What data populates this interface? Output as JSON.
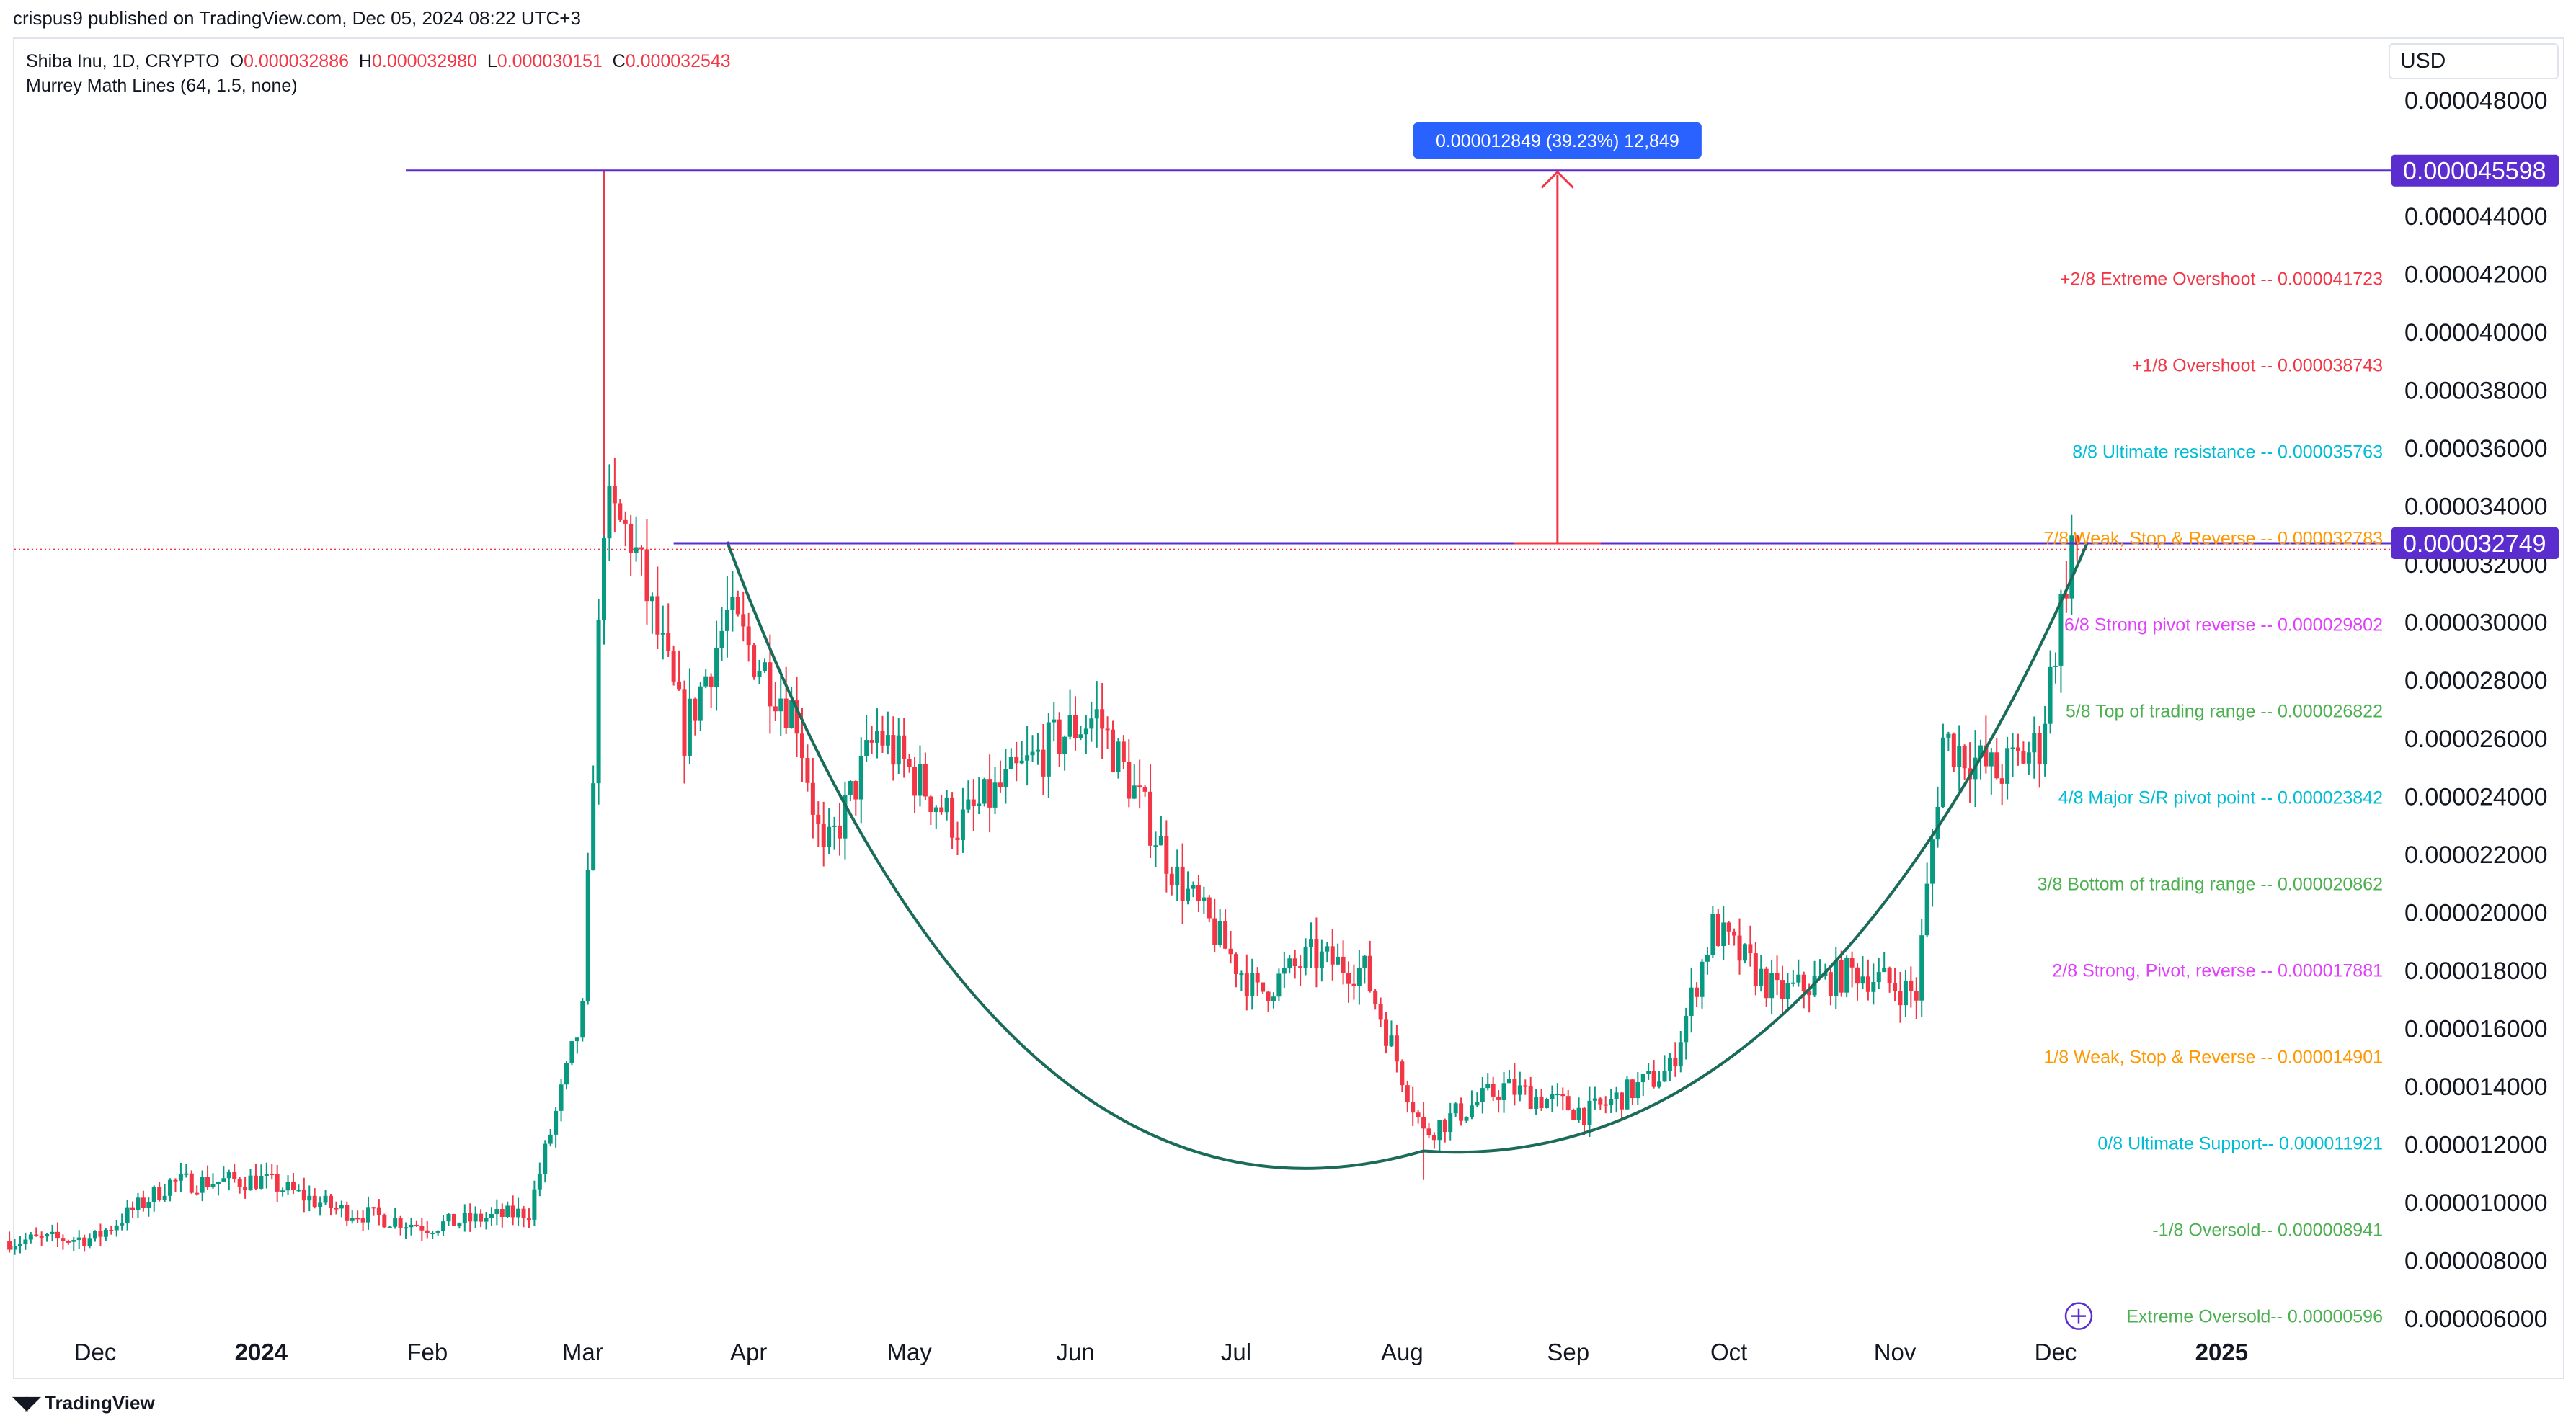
{
  "header": {
    "published": "crispus9 published on TradingView.com, Dec 05, 2024 08:22 UTC+3"
  },
  "legend": {
    "symbol": "Shiba Inu, 1D, CRYPTO",
    "o_label": "O",
    "o": "0.000032886",
    "h_label": "H",
    "h": "0.000032980",
    "l_label": "L",
    "l": "0.000030151",
    "c_label": "C",
    "c": "0.000032543",
    "indicator": "Murrey Math Lines (64, 1.5, none)"
  },
  "currency": "USD",
  "footer": {
    "brand": "TradingView"
  },
  "colors": {
    "up": "#089981",
    "down": "#f23645",
    "purple": "#5b2dcf",
    "curve": "#1b6b5a",
    "measure": "#f23645",
    "tooltip": "#2962ff",
    "cyan": "#00bcd4",
    "orange": "#ff9800",
    "magenta": "#e040fb",
    "green": "#4caf50",
    "red": "#f23645"
  },
  "chart_data": {
    "type": "candlestick",
    "title": "Shiba Inu, 1D, CRYPTO",
    "ylim": [
      5.5e-06,
      5.05e-05
    ],
    "y_ticks": [
      "0.000048000",
      "0.000044000",
      "0.000042000",
      "0.000040000",
      "0.000038000",
      "0.000036000",
      "0.000034000",
      "0.000032000",
      "0.000030000",
      "0.000028000",
      "0.000026000",
      "0.000024000",
      "0.000022000",
      "0.000020000",
      "0.000018000",
      "0.000016000",
      "0.000014000",
      "0.000012000",
      "0.000010000",
      "0.000008000",
      "0.000006000"
    ],
    "x_ticks": [
      "Dec",
      "2024",
      "Feb",
      "Mar",
      "Apr",
      "May",
      "Jun",
      "Jul",
      "Aug",
      "Sep",
      "Oct",
      "Nov",
      "Dec",
      "2025"
    ],
    "price_labels": [
      {
        "value": "0.000045598",
        "price": 4.5598e-05
      },
      {
        "value": "0.000032749",
        "price": 3.2749e-05
      }
    ],
    "resistance_line": 4.5598e-05,
    "neckline": 3.2749e-05,
    "measure_tooltip": "0.000012849 (39.23%) 12,849",
    "murrey_levels": [
      {
        "label": "+2/8 Extreme Overshoot --  0.000041723",
        "value": 4.1723e-05,
        "color": "red"
      },
      {
        "label": "+1/8 Overshoot --  0.000038743",
        "value": 3.8743e-05,
        "color": "red"
      },
      {
        "label": "8/8 Ultimate resistance --  0.000035763",
        "value": 3.5763e-05,
        "color": "cyan"
      },
      {
        "label": "7/8 Weak, Stop & Reverse --  0.000032783",
        "value": 3.2783e-05,
        "color": "orange"
      },
      {
        "label": "6/8 Strong pivot reverse --  0.000029802",
        "value": 2.9802e-05,
        "color": "magenta"
      },
      {
        "label": "5/8 Top of trading range --  0.000026822",
        "value": 2.6822e-05,
        "color": "green"
      },
      {
        "label": "4/8 Major S/R pivot point --  0.000023842",
        "value": 2.3842e-05,
        "color": "cyan"
      },
      {
        "label": "3/8 Bottom of trading range --  0.000020862",
        "value": 2.0862e-05,
        "color": "green"
      },
      {
        "label": "2/8 Strong, Pivot, reverse --  0.000017881",
        "value": 1.7881e-05,
        "color": "magenta"
      },
      {
        "label": "1/8 Weak, Stop & Reverse --  0.000014901",
        "value": 1.4901e-05,
        "color": "orange"
      },
      {
        "label": "0/8 Ultimate Support--  0.000011921",
        "value": 1.1921e-05,
        "color": "cyan"
      },
      {
        "label": "-1/8 Oversold--  0.000008941",
        "value": 8.941e-06,
        "color": "green"
      },
      {
        "label": "Extreme Oversold--  0.00000596",
        "value": 5.96e-06,
        "color": "green"
      }
    ],
    "series": [
      {
        "date": "2023-11-15",
        "close": 8.7e-06
      },
      {
        "date": "2023-12-01",
        "close": 8.8e-06
      },
      {
        "date": "2023-12-15",
        "close": 1.07e-05
      },
      {
        "date": "2024-01-01",
        "close": 1.08e-05
      },
      {
        "date": "2024-01-15",
        "close": 9.8e-06
      },
      {
        "date": "2024-02-01",
        "close": 9.2e-06
      },
      {
        "date": "2024-02-20",
        "close": 9.7e-06
      },
      {
        "date": "2024-03-01",
        "close": 1.65e-05
      },
      {
        "date": "2024-03-05",
        "close": 3.38e-05
      },
      {
        "date": "2024-03-10",
        "close": 3.3e-05
      },
      {
        "date": "2024-03-20",
        "close": 2.62e-05
      },
      {
        "date": "2024-03-28",
        "close": 3.02e-05
      },
      {
        "date": "2024-04-10",
        "close": 2.68e-05
      },
      {
        "date": "2024-04-15",
        "close": 2.18e-05
      },
      {
        "date": "2024-04-25",
        "close": 2.62e-05
      },
      {
        "date": "2024-05-10",
        "close": 2.3e-05
      },
      {
        "date": "2024-05-30",
        "close": 2.62e-05
      },
      {
        "date": "2024-06-05",
        "close": 2.68e-05
      },
      {
        "date": "2024-06-20",
        "close": 2.12e-05
      },
      {
        "date": "2024-07-05",
        "close": 1.72e-05
      },
      {
        "date": "2024-07-15",
        "close": 1.85e-05
      },
      {
        "date": "2024-07-25",
        "close": 1.8e-05
      },
      {
        "date": "2024-08-05",
        "close": 1.24e-05
      },
      {
        "date": "2024-08-20",
        "close": 1.4e-05
      },
      {
        "date": "2024-09-05",
        "close": 1.31e-05
      },
      {
        "date": "2024-09-20",
        "close": 1.46e-05
      },
      {
        "date": "2024-09-28",
        "close": 1.95e-05
      },
      {
        "date": "2024-10-10",
        "close": 1.72e-05
      },
      {
        "date": "2024-10-25",
        "close": 1.8e-05
      },
      {
        "date": "2024-11-05",
        "close": 1.72e-05
      },
      {
        "date": "2024-11-10",
        "close": 2.6e-05
      },
      {
        "date": "2024-11-20",
        "close": 2.48e-05
      },
      {
        "date": "2024-11-28",
        "close": 2.58e-05
      },
      {
        "date": "2024-12-04",
        "close": 3.28e-05
      },
      {
        "date": "2024-12-05",
        "close": 3.2543e-05
      }
    ]
  }
}
